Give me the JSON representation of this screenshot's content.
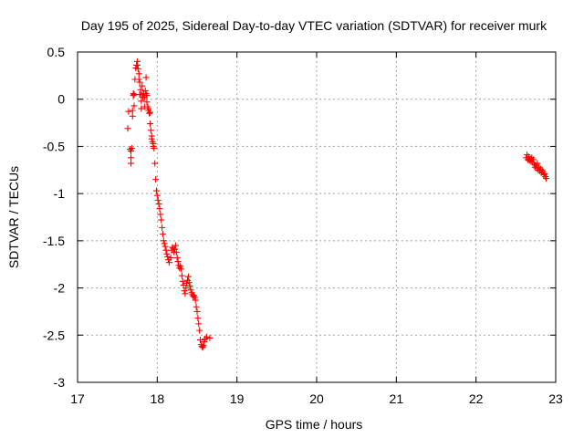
{
  "chart_data": {
    "type": "scatter",
    "title": "Day 195 of 2025, Sidereal Day-to-day VTEC variation (SDTVAR) for receiver murk",
    "xlabel": "GPS time / hours",
    "ylabel": "SDTVAR / TECUs",
    "xlim": [
      17,
      23
    ],
    "ylim": [
      -3,
      0.5
    ],
    "xticks": [
      17,
      18,
      19,
      20,
      21,
      22,
      23
    ],
    "yticks": [
      0.5,
      0,
      -0.5,
      -1,
      -1.5,
      -2,
      -2.5,
      -3
    ],
    "xtick_labels": [
      "17",
      "18",
      "19",
      "20",
      "21",
      "22",
      "23"
    ],
    "ytick_labels": [
      "0.5",
      "0",
      "-0.5",
      "-1",
      "-1.5",
      "-2",
      "-2.5",
      "-3"
    ],
    "grid": true,
    "marker": "plus",
    "marker_color": "#ff0000",
    "series": [
      {
        "name": "SDTVAR",
        "points": [
          [
            17.63,
            -0.31
          ],
          [
            17.64,
            -0.13
          ],
          [
            17.66,
            -0.53
          ],
          [
            17.67,
            -0.55
          ],
          [
            17.67,
            -0.62
          ],
          [
            17.67,
            -0.68
          ],
          [
            17.68,
            -0.52
          ],
          [
            17.69,
            -0.18
          ],
          [
            17.69,
            -0.12
          ],
          [
            17.7,
            0.04
          ],
          [
            17.7,
            0.06
          ],
          [
            17.71,
            0.05
          ],
          [
            17.71,
            -0.07
          ],
          [
            17.72,
            0.21
          ],
          [
            17.73,
            0.33
          ],
          [
            17.74,
            0.36
          ],
          [
            17.75,
            0.4
          ],
          [
            17.75,
            0.36
          ],
          [
            17.76,
            0.32
          ],
          [
            17.77,
            0.27
          ],
          [
            17.77,
            0.21
          ],
          [
            17.78,
            0.18
          ],
          [
            17.78,
            0.05
          ],
          [
            17.79,
            0.05
          ],
          [
            17.79,
            0.1
          ],
          [
            17.8,
            -0.02
          ],
          [
            17.8,
            -0.1
          ],
          [
            17.81,
            0.05
          ],
          [
            17.81,
            0.14
          ],
          [
            17.82,
            0.02
          ],
          [
            17.83,
            0.06
          ],
          [
            17.84,
            0.02
          ],
          [
            17.84,
            -0.08
          ],
          [
            17.85,
            0.09
          ],
          [
            17.86,
            0.23
          ],
          [
            17.86,
            0.06
          ],
          [
            17.87,
            0.04
          ],
          [
            17.87,
            -0.03
          ],
          [
            17.88,
            -0.08
          ],
          [
            17.89,
            -0.1
          ],
          [
            17.89,
            -0.12
          ],
          [
            17.9,
            -0.15
          ],
          [
            17.91,
            -0.14
          ],
          [
            17.91,
            -0.26
          ],
          [
            17.92,
            -0.33
          ],
          [
            17.93,
            -0.39
          ],
          [
            17.93,
            -0.42
          ],
          [
            17.94,
            -0.45
          ],
          [
            17.95,
            -0.47
          ],
          [
            17.95,
            -0.5
          ],
          [
            17.96,
            -0.52
          ],
          [
            17.97,
            -0.68
          ],
          [
            17.98,
            -0.85
          ],
          [
            17.99,
            -0.97
          ],
          [
            18.0,
            -1.02
          ],
          [
            18.01,
            -1.07
          ],
          [
            18.02,
            -1.11
          ],
          [
            18.03,
            -1.16
          ],
          [
            18.04,
            -1.22
          ],
          [
            18.05,
            -1.28
          ],
          [
            18.06,
            -1.36
          ],
          [
            18.07,
            -1.43
          ],
          [
            18.08,
            -1.5
          ],
          [
            18.09,
            -1.53
          ],
          [
            18.1,
            -1.56
          ],
          [
            18.11,
            -1.6
          ],
          [
            18.12,
            -1.64
          ],
          [
            18.13,
            -1.67
          ],
          [
            18.14,
            -1.7
          ],
          [
            18.15,
            -1.73
          ],
          [
            18.17,
            -1.68
          ],
          [
            18.18,
            -1.6
          ],
          [
            18.19,
            -1.57
          ],
          [
            18.2,
            -1.58
          ],
          [
            18.21,
            -1.62
          ],
          [
            18.22,
            -1.59
          ],
          [
            18.23,
            -1.55
          ],
          [
            18.24,
            -1.62
          ],
          [
            18.25,
            -1.68
          ],
          [
            18.26,
            -1.72
          ],
          [
            18.27,
            -1.76
          ],
          [
            18.28,
            -1.79
          ],
          [
            18.29,
            -1.77
          ],
          [
            18.3,
            -1.8
          ],
          [
            18.31,
            -1.87
          ],
          [
            18.32,
            -1.93
          ],
          [
            18.33,
            -1.97
          ],
          [
            18.34,
            -2.03
          ],
          [
            18.35,
            -2.06
          ],
          [
            18.36,
            -2.0
          ],
          [
            18.37,
            -1.95
          ],
          [
            18.38,
            -1.92
          ],
          [
            18.39,
            -1.88
          ],
          [
            18.4,
            -1.94
          ],
          [
            18.41,
            -1.98
          ],
          [
            18.42,
            -2.02
          ],
          [
            18.43,
            -2.05
          ],
          [
            18.44,
            -2.07
          ],
          [
            18.45,
            -2.09
          ],
          [
            18.46,
            -2.08
          ],
          [
            18.47,
            -2.1
          ],
          [
            18.48,
            -2.13
          ],
          [
            18.49,
            -2.2
          ],
          [
            18.5,
            -2.25
          ],
          [
            18.51,
            -2.32
          ],
          [
            18.52,
            -2.38
          ],
          [
            18.53,
            -2.45
          ],
          [
            18.54,
            -2.55
          ],
          [
            18.55,
            -2.6
          ],
          [
            18.56,
            -2.62
          ],
          [
            18.57,
            -2.63
          ],
          [
            18.58,
            -2.61
          ],
          [
            18.59,
            -2.57
          ],
          [
            18.6,
            -2.54
          ],
          [
            18.62,
            -2.52
          ],
          [
            18.66,
            -2.53
          ],
          [
            22.63,
            -0.62
          ],
          [
            22.64,
            -0.59
          ],
          [
            22.65,
            -0.64
          ],
          [
            22.66,
            -0.61
          ],
          [
            22.67,
            -0.65
          ],
          [
            22.68,
            -0.63
          ],
          [
            22.69,
            -0.66
          ],
          [
            22.7,
            -0.62
          ],
          [
            22.71,
            -0.67
          ],
          [
            22.72,
            -0.64
          ],
          [
            22.73,
            -0.69
          ],
          [
            22.74,
            -0.72
          ],
          [
            22.75,
            -0.7
          ],
          [
            22.76,
            -0.73
          ],
          [
            22.77,
            -0.68
          ],
          [
            22.78,
            -0.75
          ],
          [
            22.79,
            -0.72
          ],
          [
            22.8,
            -0.76
          ],
          [
            22.81,
            -0.74
          ],
          [
            22.82,
            -0.78
          ],
          [
            22.83,
            -0.75
          ],
          [
            22.84,
            -0.77
          ],
          [
            22.85,
            -0.8
          ],
          [
            22.86,
            -0.79
          ],
          [
            22.87,
            -0.82
          ],
          [
            22.88,
            -0.84
          ]
        ]
      }
    ]
  }
}
